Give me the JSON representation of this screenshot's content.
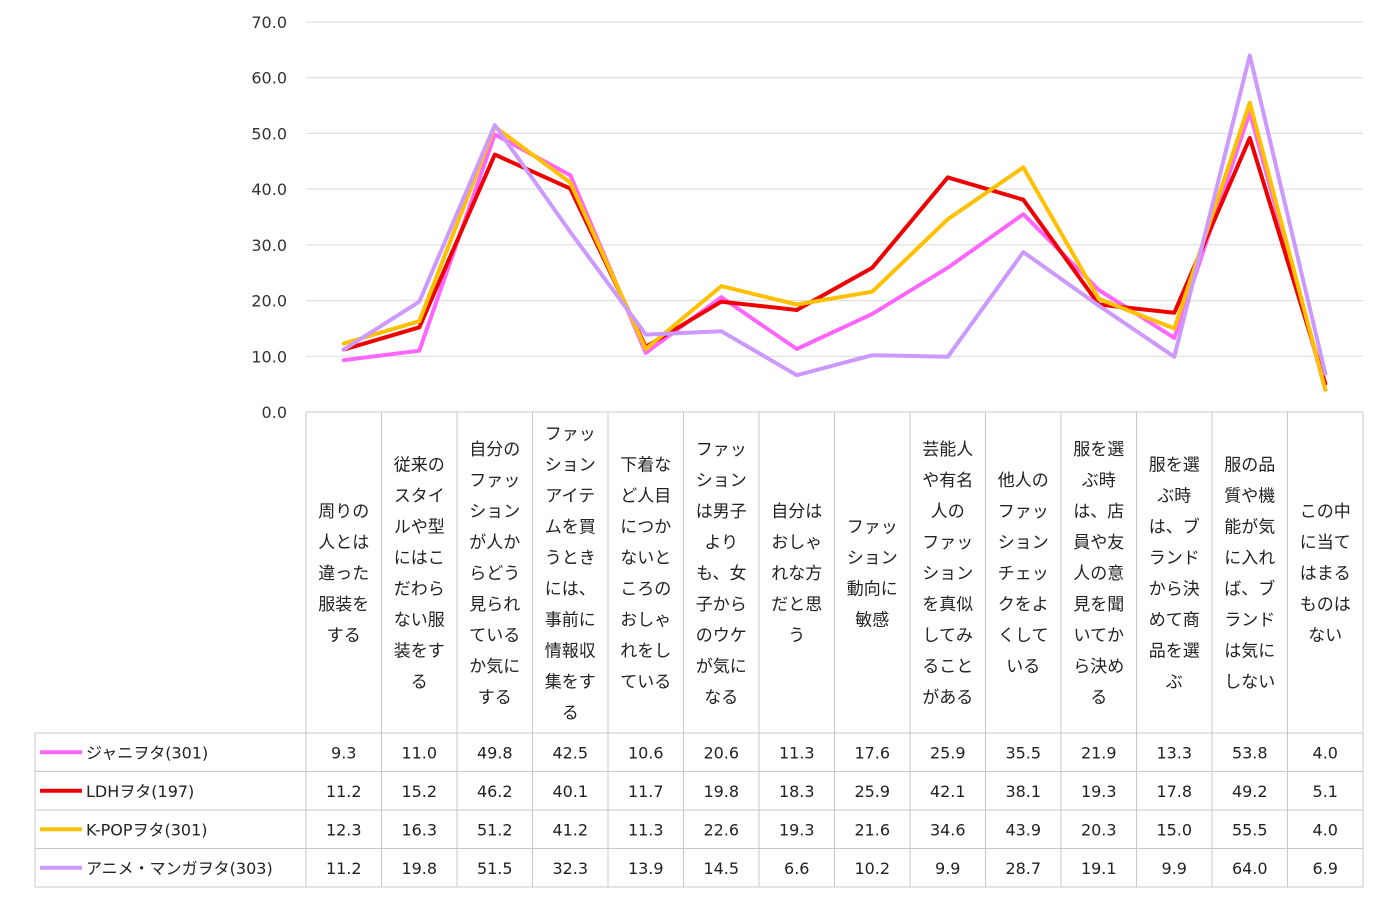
{
  "chart_data": {
    "type": "line",
    "title": "",
    "xlabel": "",
    "ylabel": "",
    "ylim": [
      0,
      70
    ],
    "yticks": [
      "0.0",
      "10.0",
      "20.0",
      "30.0",
      "40.0",
      "50.0",
      "60.0",
      "70.0"
    ],
    "grid": true,
    "legend": "data-table-left",
    "categories": [
      "周りの人とは違った服装をする",
      "従来のスタイルや型にはこだわらない服装をする",
      "自分のファッションが人からどう見られているか気にする",
      "ファッションアイテムを買うときには、事前に情報収集をする",
      "下着など人目につかないところのおしゃれをしている",
      "ファッションは男子よりも、女子からのウケが気になる",
      "自分はおしゃれな方だと思う",
      "ファッション動向に敏感",
      "芸能人や有名人のファッションを真似してみることがある",
      "他人のファッションチェックをよくしている",
      "服を選ぶ時は、店員や友人の意見を聞いてから決める",
      "服を選ぶ時は、ブランドから決めて商品を選ぶ",
      "服の品質や機能が気に入れば、ブランドは気にしない",
      "この中に当てはまるものはない"
    ],
    "category_lines": [
      [
        "周りの",
        "人とは",
        "違った",
        "服装を",
        "する"
      ],
      [
        "従来の",
        "スタイ",
        "ルや型",
        "にはこ",
        "だわら",
        "ない服",
        "装をす",
        "る"
      ],
      [
        "自分の",
        "ファッ",
        "ション",
        "が人か",
        "らどう",
        "見られ",
        "ている",
        "か気に",
        "する"
      ],
      [
        "ファッ",
        "ション",
        "アイテ",
        "ムを買",
        "うとき",
        "には、",
        "事前に",
        "情報収",
        "集をす",
        "る"
      ],
      [
        "下着な",
        "ど人目",
        "につか",
        "ないと",
        "ころの",
        "おしゃ",
        "れをし",
        "ている"
      ],
      [
        "ファッ",
        "ション",
        "は男子",
        "より",
        "も、女",
        "子から",
        "のウケ",
        "が気に",
        "なる"
      ],
      [
        "自分は",
        "おしゃ",
        "れな方",
        "だと思",
        "う"
      ],
      [
        "ファッ",
        "ション",
        "動向に",
        "敏感"
      ],
      [
        "芸能人",
        "や有名",
        "人の",
        "ファッ",
        "ション",
        "を真似",
        "してみ",
        "ること",
        "がある"
      ],
      [
        "他人の",
        "ファッ",
        "ション",
        "チェッ",
        "クをよ",
        "くして",
        "いる"
      ],
      [
        "服を選",
        "ぶ時",
        "は、店",
        "員や友",
        "人の意",
        "見を聞",
        "いてか",
        "ら決め",
        "る"
      ],
      [
        "服を選",
        "ぶ時",
        "は、ブ",
        "ランド",
        "から決",
        "めて商",
        "品を選",
        "ぶ"
      ],
      [
        "服の品",
        "質や機",
        "能が気",
        "に入れ",
        "ば、ブ",
        "ランド",
        "は気に",
        "しない"
      ],
      [
        "この中",
        "に当て",
        "はまる",
        "ものは",
        "ない"
      ]
    ],
    "series": [
      {
        "name": "ジャニヲタ(301)",
        "color": "#FF66FF",
        "values": [
          9.3,
          11.0,
          49.8,
          42.5,
          10.6,
          20.6,
          11.3,
          17.6,
          25.9,
          35.5,
          21.9,
          13.3,
          53.8,
          4.0
        ],
        "labels": [
          "9.3",
          "11.0",
          "49.8",
          "42.5",
          "10.6",
          "20.6",
          "11.3",
          "17.6",
          "25.9",
          "35.5",
          "21.9",
          "13.3",
          "53.8",
          "4.0"
        ]
      },
      {
        "name": "LDHヲタ(197)",
        "color": "#EE0000",
        "values": [
          11.2,
          15.2,
          46.2,
          40.1,
          11.7,
          19.8,
          18.3,
          25.9,
          42.1,
          38.1,
          19.3,
          17.8,
          49.2,
          5.1
        ],
        "labels": [
          "11.2",
          "15.2",
          "46.2",
          "40.1",
          "11.7",
          "19.8",
          "18.3",
          "25.9",
          "42.1",
          "38.1",
          "19.3",
          "17.8",
          "49.2",
          "5.1"
        ]
      },
      {
        "name": "K-POPヲタ(301)",
        "color": "#FFC000",
        "values": [
          12.3,
          16.3,
          51.2,
          41.2,
          11.3,
          22.6,
          19.3,
          21.6,
          34.6,
          43.9,
          20.3,
          15.0,
          55.5,
          4.0
        ],
        "labels": [
          "12.3",
          "16.3",
          "51.2",
          "41.2",
          "11.3",
          "22.6",
          "19.3",
          "21.6",
          "34.6",
          "43.9",
          "20.3",
          "15.0",
          "55.5",
          "4.0"
        ]
      },
      {
        "name": "アニメ・マンガヲタ(303)",
        "color": "#CC99FF",
        "values": [
          11.2,
          19.8,
          51.5,
          32.3,
          13.9,
          14.5,
          6.6,
          10.2,
          9.9,
          28.7,
          19.1,
          9.9,
          64.0,
          6.9
        ],
        "labels": [
          "11.2",
          "19.8",
          "51.5",
          "32.3",
          "13.9",
          "14.5",
          "6.6",
          "10.2",
          "9.9",
          "28.7",
          "19.1",
          "9.9",
          "64.0",
          "6.9"
        ]
      }
    ]
  }
}
